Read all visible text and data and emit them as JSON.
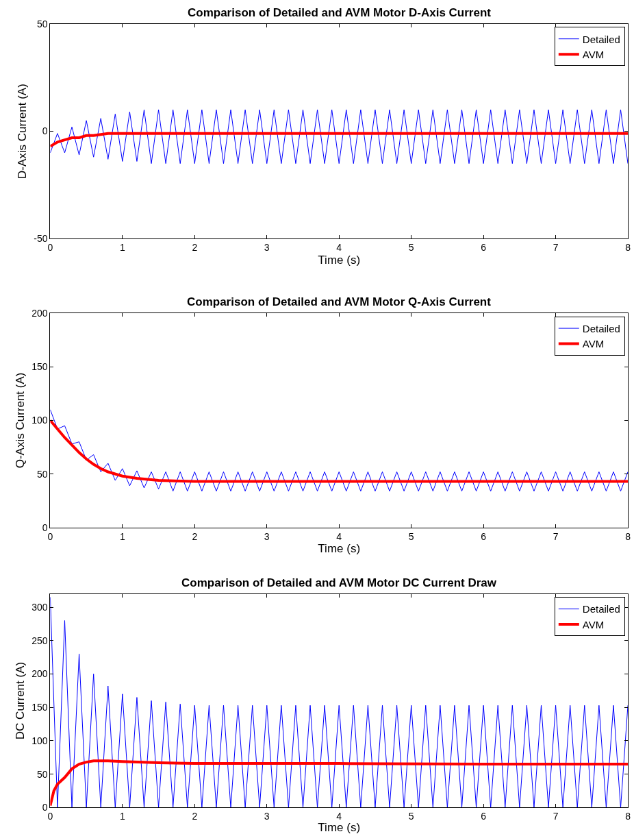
{
  "chart_data": [
    {
      "type": "line",
      "title": "Comparison of Detailed and AVM Motor D-Axis Current",
      "xlabel": "Time (s)",
      "ylabel": "D-Axis Current (A)",
      "xlim": [
        0,
        8
      ],
      "xticks": [
        0,
        1,
        2,
        3,
        4,
        5,
        6,
        7,
        8
      ],
      "ylim": [
        -50,
        50
      ],
      "yticks": [
        -50,
        0,
        50
      ],
      "grid": false,
      "legend": "top right",
      "series": [
        {
          "name": "Detailed",
          "color": "#0000ff",
          "x": [
            0,
            0.1,
            0.2,
            0.3,
            0.4,
            0.5,
            0.6,
            0.7,
            0.8,
            0.9,
            1,
            1.1,
            1.2,
            1.3,
            1.4,
            1.5,
            1.6,
            1.7,
            1.8,
            1.9,
            2,
            2.1,
            2.2,
            2.3,
            2.4,
            2.5,
            2.6,
            2.7,
            2.8,
            2.9,
            3,
            3.1,
            3.2,
            3.3,
            3.4,
            3.5,
            3.6,
            3.7,
            3.8,
            3.9,
            4,
            4.1,
            4.2,
            4.3,
            4.4,
            4.5,
            4.6,
            4.7,
            4.8,
            4.9,
            5,
            5.1,
            5.2,
            5.3,
            5.4,
            5.5,
            5.6,
            5.7,
            5.8,
            5.9,
            6,
            6.1,
            6.2,
            6.3,
            6.4,
            6.5,
            6.6,
            6.7,
            6.8,
            6.9,
            7,
            7.1,
            7.2,
            7.3,
            7.4,
            7.5,
            7.6,
            7.7,
            7.8,
            7.9,
            8
          ],
          "values": [
            -10,
            -1,
            -10,
            2,
            -11,
            5,
            -12,
            6,
            -13,
            8,
            -14,
            9,
            -14,
            10,
            -15,
            10,
            -15,
            10,
            -15,
            10,
            -15,
            10,
            -15,
            10,
            -15,
            10,
            -15,
            10,
            -15,
            10,
            -15,
            10,
            -15,
            10,
            -15,
            10,
            -15,
            10,
            -15,
            10,
            -15,
            10,
            -15,
            10,
            -15,
            10,
            -15,
            10,
            -15,
            10,
            -15,
            10,
            -15,
            10,
            -15,
            10,
            -15,
            10,
            -15,
            10,
            -15,
            10,
            -15,
            10,
            -15,
            10,
            -15,
            10,
            -15,
            10,
            -15,
            10,
            -15,
            10,
            -15,
            10,
            -15,
            10,
            -15,
            10,
            -15
          ]
        },
        {
          "name": "AVM",
          "color": "#ff0000",
          "x": [
            0,
            0.1,
            0.2,
            0.3,
            0.4,
            0.5,
            0.6,
            0.8,
            1,
            1.5,
            2,
            4,
            6,
            8
          ],
          "values": [
            -7,
            -5,
            -4,
            -3,
            -3,
            -2,
            -2,
            -1,
            -1,
            -1,
            -1,
            -1,
            -1,
            -1
          ]
        }
      ]
    },
    {
      "type": "line",
      "title": "Comparison of Detailed and AVM Motor Q-Axis Current",
      "xlabel": "Time (s)",
      "ylabel": "Q-Axis Current (A)",
      "xlim": [
        0,
        8
      ],
      "xticks": [
        0,
        1,
        2,
        3,
        4,
        5,
        6,
        7,
        8
      ],
      "ylim": [
        0,
        200
      ],
      "yticks": [
        0,
        50,
        100,
        150,
        200
      ],
      "grid": false,
      "legend": "top right",
      "series": [
        {
          "name": "Detailed",
          "color": "#0000ff",
          "x": [
            0,
            0.1,
            0.2,
            0.3,
            0.4,
            0.5,
            0.6,
            0.7,
            0.8,
            0.9,
            1,
            1.1,
            1.2,
            1.3,
            1.4,
            1.5,
            1.6,
            1.7,
            1.8,
            1.9,
            2,
            2.1,
            2.2,
            2.3,
            2.4,
            2.5,
            2.6,
            2.7,
            2.8,
            2.9,
            3,
            3.1,
            3.2,
            3.3,
            3.4,
            3.5,
            3.6,
            3.7,
            3.8,
            3.9,
            4,
            4.1,
            4.2,
            4.3,
            4.4,
            4.5,
            4.6,
            4.7,
            4.8,
            4.9,
            5,
            5.1,
            5.2,
            5.3,
            5.4,
            5.5,
            5.6,
            5.7,
            5.8,
            5.9,
            6,
            6.1,
            6.2,
            6.3,
            6.4,
            6.5,
            6.6,
            6.7,
            6.8,
            6.9,
            7,
            7.1,
            7.2,
            7.3,
            7.4,
            7.5,
            7.6,
            7.7,
            7.8,
            7.9,
            8
          ],
          "values": [
            110,
            92,
            95,
            78,
            80,
            63,
            68,
            52,
            60,
            44,
            55,
            39,
            53,
            37,
            52,
            36,
            52,
            34,
            52,
            34,
            52,
            34,
            52,
            34,
            52,
            34,
            52,
            34,
            52,
            34,
            52,
            34,
            52,
            34,
            52,
            34,
            52,
            34,
            52,
            34,
            52,
            34,
            52,
            34,
            52,
            34,
            52,
            34,
            52,
            34,
            52,
            34,
            52,
            34,
            52,
            34,
            52,
            34,
            52,
            34,
            52,
            34,
            52,
            34,
            52,
            34,
            52,
            34,
            52,
            34,
            52,
            34,
            52,
            34,
            52,
            34,
            52,
            34,
            52,
            34,
            52
          ]
        },
        {
          "name": "AVM",
          "color": "#ff0000",
          "x": [
            0,
            0.1,
            0.2,
            0.3,
            0.4,
            0.5,
            0.6,
            0.7,
            0.8,
            1,
            1.2,
            1.5,
            2,
            3,
            4,
            6,
            8
          ],
          "values": [
            100,
            92,
            84,
            77,
            70,
            64,
            59,
            55,
            52,
            48,
            46,
            44,
            43,
            43,
            43,
            43,
            43
          ]
        }
      ]
    },
    {
      "type": "line",
      "title": "Comparison of Detailed and AVM Motor DC Current Draw",
      "xlabel": "Time (s)",
      "ylabel": "DC Current (A)",
      "xlim": [
        0,
        8
      ],
      "xticks": [
        0,
        1,
        2,
        3,
        4,
        5,
        6,
        7,
        8
      ],
      "ylim": [
        0,
        320
      ],
      "yticks": [
        0,
        50,
        100,
        150,
        200,
        250,
        300
      ],
      "grid": false,
      "legend": "top right",
      "series": [
        {
          "name": "Detailed",
          "color": "#0000ff",
          "x": [
            0,
            0.1,
            0.2,
            0.3,
            0.4,
            0.5,
            0.6,
            0.7,
            0.8,
            0.9,
            1,
            1.1,
            1.2,
            1.3,
            1.4,
            1.5,
            1.6,
            1.7,
            1.8,
            1.9,
            2,
            2.1,
            2.2,
            2.3,
            2.4,
            2.5,
            2.6,
            2.7,
            2.8,
            2.9,
            3,
            3.1,
            3.2,
            3.3,
            3.4,
            3.5,
            3.6,
            3.7,
            3.8,
            3.9,
            4,
            4.1,
            4.2,
            4.3,
            4.4,
            4.5,
            4.6,
            4.7,
            4.8,
            4.9,
            5,
            5.1,
            5.2,
            5.3,
            5.4,
            5.5,
            5.6,
            5.7,
            5.8,
            5.9,
            6,
            6.1,
            6.2,
            6.3,
            6.4,
            6.5,
            6.6,
            6.7,
            6.8,
            6.9,
            7,
            7.1,
            7.2,
            7.3,
            7.4,
            7.5,
            7.6,
            7.7,
            7.8,
            7.9,
            8
          ],
          "values": [
            315,
            0,
            280,
            0,
            230,
            0,
            200,
            0,
            182,
            0,
            170,
            0,
            165,
            0,
            160,
            0,
            158,
            0,
            155,
            0,
            153,
            0,
            153,
            0,
            153,
            0,
            153,
            0,
            153,
            0,
            153,
            0,
            153,
            0,
            153,
            0,
            153,
            0,
            153,
            0,
            153,
            0,
            153,
            0,
            153,
            0,
            153,
            0,
            153,
            0,
            153,
            0,
            153,
            0,
            153,
            0,
            153,
            0,
            153,
            0,
            153,
            0,
            153,
            0,
            153,
            0,
            153,
            0,
            153,
            0,
            153,
            0,
            153,
            0,
            153,
            0,
            153,
            0,
            153,
            0,
            153
          ]
        },
        {
          "name": "AVM",
          "color": "#ff0000",
          "x": [
            0,
            0.05,
            0.1,
            0.2,
            0.3,
            0.4,
            0.5,
            0.6,
            0.8,
            1,
            1.5,
            2,
            4,
            6,
            8
          ],
          "values": [
            3,
            25,
            35,
            45,
            58,
            65,
            68,
            70,
            70,
            69,
            67,
            66,
            66,
            65,
            65
          ]
        }
      ]
    }
  ]
}
